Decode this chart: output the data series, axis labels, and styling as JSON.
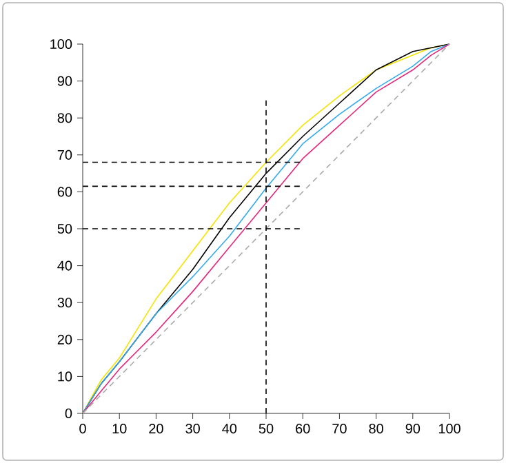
{
  "chart_data": {
    "type": "line",
    "xlim": [
      0,
      100
    ],
    "ylim": [
      0,
      100
    ],
    "xticks": [
      0,
      10,
      20,
      30,
      40,
      50,
      60,
      70,
      80,
      90,
      100
    ],
    "yticks": [
      0,
      10,
      20,
      30,
      40,
      50,
      60,
      70,
      80,
      90,
      100
    ],
    "grid": false,
    "marker": "none",
    "series": [
      {
        "color": "#f5e400",
        "x": [
          0,
          5,
          10,
          20,
          30,
          40,
          50,
          60,
          70,
          80,
          90,
          95,
          100
        ],
        "values": [
          0,
          9,
          15,
          31,
          44,
          57,
          68,
          78,
          86,
          93,
          97,
          99,
          100
        ]
      },
      {
        "color": "#000000",
        "x": [
          0,
          5,
          10,
          20,
          30,
          40,
          50,
          60,
          70,
          80,
          90,
          95,
          100
        ],
        "values": [
          0,
          8,
          14,
          27,
          39,
          53,
          65,
          75,
          84,
          93,
          98,
          99,
          100
        ]
      },
      {
        "color": "#33aaee",
        "x": [
          0,
          5,
          10,
          20,
          30,
          40,
          50,
          60,
          70,
          80,
          90,
          95,
          100
        ],
        "values": [
          0,
          8,
          14,
          27,
          37,
          48,
          61,
          73,
          81,
          88,
          94,
          98,
          100
        ]
      },
      {
        "color": "#e6267a",
        "x": [
          0,
          5,
          10,
          20,
          30,
          40,
          50,
          60,
          70,
          80,
          90,
          95,
          100
        ],
        "values": [
          0,
          6,
          12,
          22,
          33,
          45,
          57,
          69,
          78,
          87,
          93,
          97,
          100
        ]
      },
      {
        "color": "#aaaaaa",
        "line_style": "dashed",
        "x": [
          0,
          100
        ],
        "values": [
          0,
          100
        ]
      },
      {
        "color": "#000000",
        "line_style": "dashed",
        "x": [
          0,
          60
        ],
        "values": [
          68,
          68
        ]
      },
      {
        "color": "#000000",
        "line_style": "dashed",
        "x": [
          0,
          60
        ],
        "values": [
          61.5,
          61.5
        ]
      },
      {
        "color": "#000000",
        "line_style": "dashed",
        "x": [
          0,
          60
        ],
        "values": [
          50,
          50
        ]
      },
      {
        "color": "#000000",
        "line_style": "dashed",
        "x": [
          50,
          50
        ],
        "values": [
          0,
          85
        ]
      }
    ]
  }
}
